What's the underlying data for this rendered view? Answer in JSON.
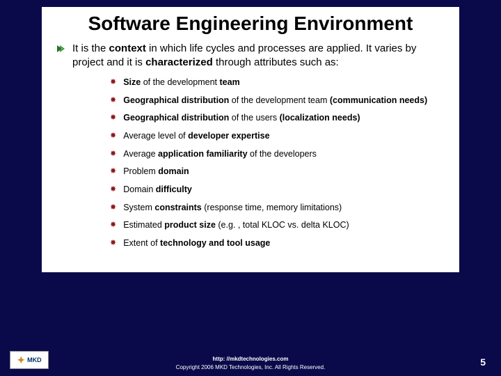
{
  "background": {
    "base_color": "#0a0a4a",
    "ray_color": "#1a1a7a",
    "content_bg": "#ffffff"
  },
  "title": "Software Engineering Environment",
  "title_fontsize": 28,
  "intro_html": "It is the <b>context</b> in which life cycles and processes are applied. It varies by project and it is <b>characterized</b> through attributes such as:",
  "intro_fontsize": 15,
  "bullet": {
    "arrow_color": "#2a6e2a",
    "star_color": "#8a1a1a"
  },
  "sub_fontsize": 12.5,
  "sub_items": [
    "<b>Size</b> of the development <b>team</b>",
    "<b>Geographical distribution</b> of the development team <b>(communication needs)</b>",
    "<b>Geographical distribution</b> of the users <b>(localization needs)</b>",
    "Average level of <b>developer expertise</b>",
    "Average <b>application familiarity</b> of the developers",
    "Problem <b>domain</b>",
    "Domain <b>difficulty</b>",
    "System <b>constraints</b> (response time, memory limitations)",
    "Estimated <b>product size</b> (e.g. , total KLOC vs. delta KLOC)",
    "Extent of <b>technology and tool usage</b>"
  ],
  "footer": {
    "logo_text": "MKD",
    "url": "http: //mkdtechnologies.com",
    "copyright": "Copyright 2006 MKD Technologies, Inc. All Rights Reserved.",
    "page_number": "5",
    "text_color": "#ffffff"
  }
}
